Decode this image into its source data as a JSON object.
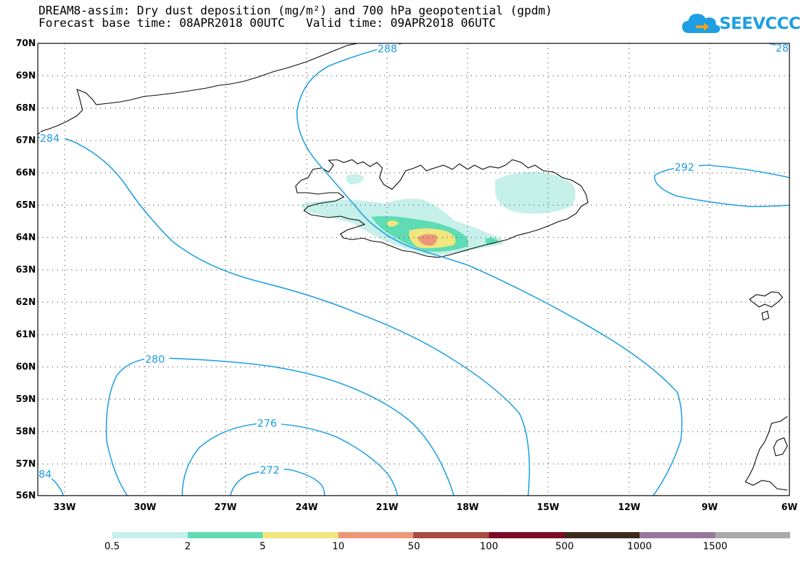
{
  "title": {
    "line1": "DREAM8-assim: Dry dust deposition (mg/m²) and 700 hPa geopotential (gpdm)",
    "line2": "Forecast base time: 08APR2018 00UTC   Valid time: 09APR2018 06UTC"
  },
  "logo": {
    "text": "SEEVCCC",
    "icon": "cloud-arrow-icon",
    "color": "#1e9fe3"
  },
  "map": {
    "extent": {
      "lon_min": -34,
      "lon_max": -6,
      "lat_min": 56,
      "lat_max": 70
    },
    "lat_labels": [
      "70N",
      "69N",
      "68N",
      "67N",
      "66N",
      "65N",
      "64N",
      "63N",
      "62N",
      "61N",
      "60N",
      "59N",
      "58N",
      "57N",
      "56N"
    ],
    "lon_labels": [
      "33W",
      "30W",
      "27W",
      "24W",
      "21W",
      "18W",
      "15W",
      "12W",
      "9W",
      "6W"
    ],
    "contour_color": "#1e9fe3",
    "contour_labels": [
      "288",
      "284",
      "292",
      "280",
      "276",
      "272",
      "84",
      "28"
    ]
  },
  "legend": {
    "colors": [
      "#c6f0ea",
      "#5fdcb4",
      "#f2e67e",
      "#eb9878",
      "#a84d43",
      "#7e0a2a",
      "#3c2a19",
      "#98779c",
      "#aaaaaa"
    ],
    "labels": [
      "0.5",
      "2",
      "5",
      "10",
      "50",
      "100",
      "500",
      "1000",
      "1500"
    ]
  }
}
